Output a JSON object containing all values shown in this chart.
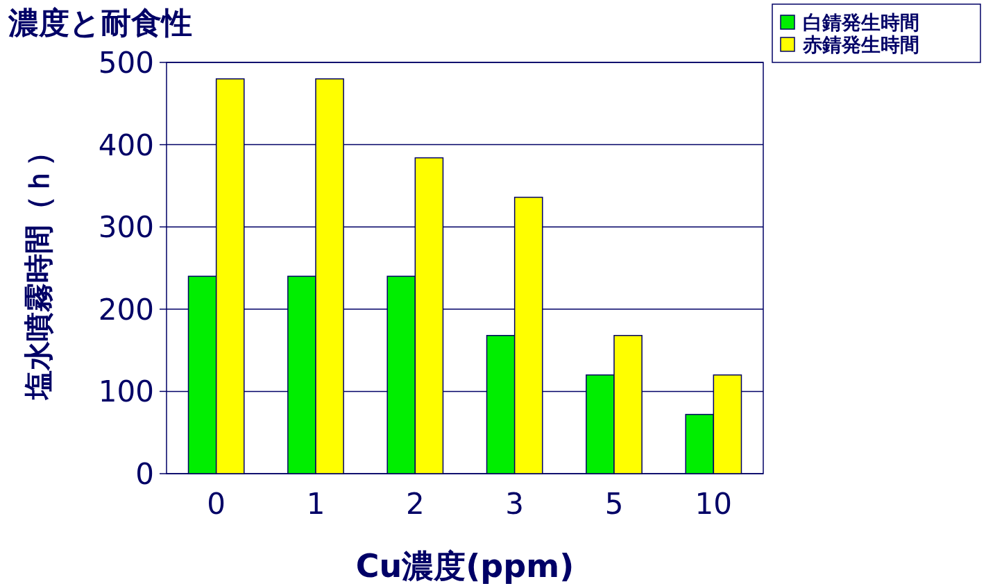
{
  "chart_data": {
    "type": "bar",
    "title": "濃度と耐食性",
    "xlabel": "Cu濃度(ppm)",
    "ylabel": "塩水噴霧時間（ｈ）",
    "categories": [
      "0",
      "1",
      "2",
      "3",
      "5",
      "10"
    ],
    "series": [
      {
        "name": "白錆発生時間",
        "color": "#00ee00",
        "values": [
          240,
          240,
          240,
          168,
          120,
          72
        ]
      },
      {
        "name": "赤錆発生時間",
        "color": "#ffff00",
        "values": [
          480,
          480,
          384,
          336,
          168,
          120
        ]
      }
    ],
    "ylim": [
      0,
      500
    ],
    "yticks": [
      0,
      100,
      200,
      300,
      400,
      500
    ],
    "grid": "y",
    "legend": "top right"
  }
}
